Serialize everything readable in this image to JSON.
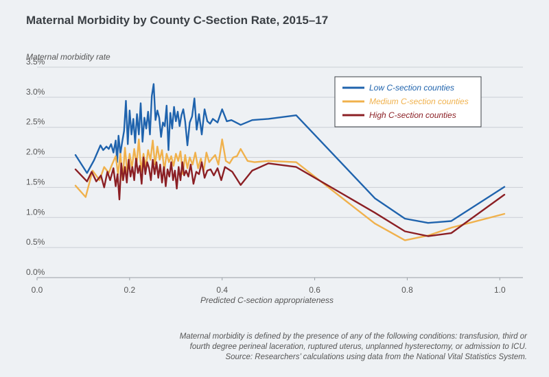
{
  "chart_data": {
    "type": "line",
    "title": "Maternal Morbidity by County C-Section Rate, 2015–17",
    "ylabel": "Maternal morbidity rate",
    "xlabel": "Predicted C-section appropriateness",
    "xlim": [
      0.0,
      1.05
    ],
    "ylim": [
      0.0,
      3.5
    ],
    "xticks": [
      "0.0",
      "0.2",
      "0.4",
      "0.6",
      "0.8",
      "1.0"
    ],
    "yticks": [
      "0.0%",
      "0.5%",
      "1.0%",
      "1.5%",
      "2.0%",
      "2.5%",
      "3.0%",
      "3.5%"
    ],
    "grid": "horizontal",
    "legend_position": "top-right",
    "series": [
      {
        "name": "Low C-section counties",
        "color": "#1f63ad",
        "x": [
          0.083,
          0.108,
          0.123,
          0.137,
          0.143,
          0.15,
          0.155,
          0.16,
          0.165,
          0.17,
          0.173,
          0.176,
          0.18,
          0.184,
          0.188,
          0.192,
          0.196,
          0.2,
          0.204,
          0.208,
          0.212,
          0.216,
          0.22,
          0.224,
          0.228,
          0.232,
          0.236,
          0.24,
          0.244,
          0.248,
          0.252,
          0.256,
          0.26,
          0.264,
          0.268,
          0.272,
          0.276,
          0.28,
          0.284,
          0.288,
          0.292,
          0.296,
          0.3,
          0.304,
          0.308,
          0.312,
          0.316,
          0.32,
          0.325,
          0.33,
          0.335,
          0.34,
          0.345,
          0.35,
          0.356,
          0.362,
          0.368,
          0.374,
          0.38,
          0.39,
          0.4,
          0.41,
          0.42,
          0.44,
          0.465,
          0.5,
          0.56,
          0.73,
          0.795,
          0.845,
          0.895,
          1.01
        ],
        "values": [
          2.04,
          1.74,
          1.95,
          2.2,
          2.12,
          2.18,
          2.14,
          2.22,
          2.08,
          2.28,
          1.92,
          2.36,
          2.06,
          2.26,
          2.44,
          2.94,
          2.22,
          2.78,
          2.38,
          2.64,
          2.24,
          2.72,
          2.38,
          2.9,
          2.26,
          2.66,
          2.48,
          2.76,
          2.38,
          3.02,
          3.22,
          2.62,
          2.78,
          2.66,
          2.34,
          2.58,
          2.52,
          2.86,
          2.12,
          2.74,
          2.48,
          2.84,
          2.6,
          2.76,
          2.52,
          2.7,
          2.8,
          2.6,
          2.2,
          2.58,
          2.68,
          2.98,
          2.46,
          2.72,
          2.38,
          2.8,
          2.6,
          2.56,
          2.64,
          2.58,
          2.8,
          2.6,
          2.62,
          2.54,
          2.62,
          2.64,
          2.7,
          1.32,
          0.98,
          0.91,
          0.94,
          1.51
        ]
      },
      {
        "name": "Medium C-section counties",
        "color": "#f0b14c",
        "x": [
          0.083,
          0.105,
          0.12,
          0.135,
          0.145,
          0.155,
          0.162,
          0.17,
          0.175,
          0.18,
          0.185,
          0.19,
          0.195,
          0.2,
          0.205,
          0.21,
          0.215,
          0.22,
          0.225,
          0.23,
          0.235,
          0.24,
          0.245,
          0.25,
          0.255,
          0.26,
          0.265,
          0.27,
          0.275,
          0.28,
          0.285,
          0.29,
          0.295,
          0.3,
          0.305,
          0.31,
          0.315,
          0.32,
          0.325,
          0.33,
          0.336,
          0.342,
          0.348,
          0.354,
          0.36,
          0.366,
          0.372,
          0.378,
          0.385,
          0.392,
          0.4,
          0.408,
          0.416,
          0.424,
          0.432,
          0.44,
          0.455,
          0.47,
          0.5,
          0.56,
          0.73,
          0.795,
          0.845,
          0.895,
          1.01
        ],
        "values": [
          1.53,
          1.34,
          1.78,
          1.62,
          1.84,
          1.74,
          1.88,
          2.02,
          1.72,
          2.06,
          1.62,
          2.16,
          1.74,
          2.06,
          1.82,
          2.14,
          1.88,
          2.3,
          1.76,
          2.06,
          1.84,
          2.12,
          1.96,
          2.28,
          1.88,
          2.18,
          1.96,
          2.12,
          1.78,
          2.06,
          1.92,
          2.02,
          1.86,
          2.06,
          1.94,
          2.1,
          1.72,
          2.04,
          1.82,
          2.0,
          1.88,
          2.08,
          1.82,
          1.98,
          1.76,
          2.08,
          1.92,
          1.98,
          2.04,
          1.88,
          2.3,
          1.94,
          1.9,
          2.0,
          2.02,
          2.14,
          1.94,
          1.92,
          1.94,
          1.92,
          0.9,
          0.62,
          0.7,
          0.83,
          1.06
        ]
      },
      {
        "name": "High C-section counties",
        "color": "#8b1f24",
        "x": [
          0.083,
          0.108,
          0.118,
          0.128,
          0.138,
          0.145,
          0.152,
          0.158,
          0.165,
          0.17,
          0.174,
          0.178,
          0.182,
          0.186,
          0.19,
          0.194,
          0.198,
          0.202,
          0.206,
          0.21,
          0.214,
          0.218,
          0.222,
          0.226,
          0.23,
          0.234,
          0.238,
          0.242,
          0.246,
          0.25,
          0.254,
          0.258,
          0.262,
          0.266,
          0.27,
          0.274,
          0.278,
          0.282,
          0.286,
          0.29,
          0.294,
          0.298,
          0.302,
          0.306,
          0.31,
          0.314,
          0.318,
          0.322,
          0.327,
          0.332,
          0.338,
          0.344,
          0.35,
          0.356,
          0.362,
          0.368,
          0.375,
          0.382,
          0.39,
          0.398,
          0.406,
          0.414,
          0.422,
          0.44,
          0.465,
          0.5,
          0.56,
          0.73,
          0.795,
          0.845,
          0.895,
          1.01
        ],
        "values": [
          1.8,
          1.6,
          1.76,
          1.6,
          1.7,
          1.5,
          1.76,
          1.62,
          1.82,
          1.52,
          1.72,
          1.3,
          1.9,
          1.62,
          1.84,
          1.58,
          1.96,
          1.68,
          1.84,
          1.62,
          1.98,
          1.74,
          1.86,
          1.56,
          2.0,
          1.72,
          1.92,
          1.82,
          1.62,
          1.96,
          1.72,
          1.92,
          1.66,
          1.88,
          1.58,
          1.84,
          1.52,
          1.8,
          1.68,
          1.92,
          1.62,
          1.78,
          1.48,
          1.84,
          1.62,
          1.92,
          1.7,
          1.78,
          1.68,
          1.88,
          1.56,
          1.76,
          1.72,
          1.92,
          1.66,
          1.78,
          1.8,
          1.7,
          1.82,
          1.62,
          1.84,
          1.8,
          1.76,
          1.54,
          1.78,
          1.9,
          1.84,
          1.08,
          0.77,
          0.69,
          0.74,
          1.38
        ]
      }
    ]
  },
  "footnote": {
    "line1": "Maternal morbidity is defined by the presence of any of the following conditions: transfusion, third or",
    "line2": "fourth degree perineal laceration, ruptured uterus, unplanned hysterectomy, or admission to ICU.",
    "line3": "Source: Researchers’ calculations using data from the National Vital Statistics System."
  }
}
